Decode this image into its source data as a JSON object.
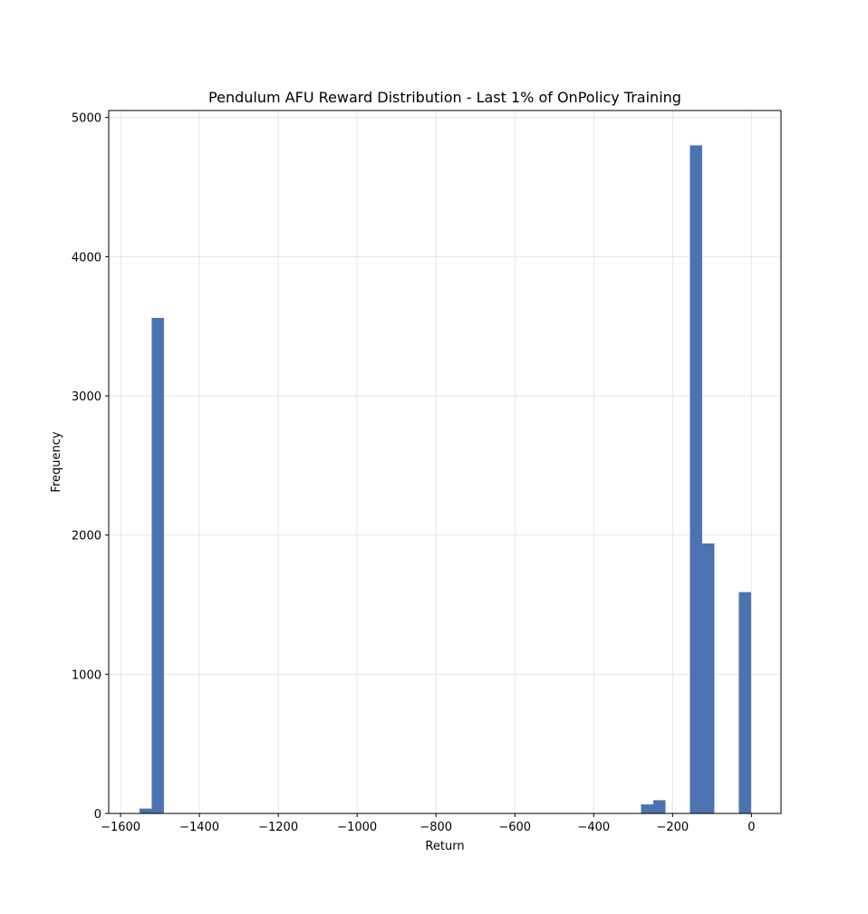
{
  "chart_data": {
    "type": "bar",
    "title": "Pendulum AFU Reward Distribution - Last 1% of OnPolicy Training",
    "xlabel": "Return",
    "ylabel": "Frequency",
    "xlim": [
      -1630,
      75
    ],
    "ylim": [
      0,
      5050
    ],
    "xticks": [
      -1600,
      -1400,
      -1200,
      -1000,
      -800,
      -600,
      -400,
      -200,
      0
    ],
    "xtick_labels": [
      "−1600",
      "−1400",
      "−1200",
      "−1000",
      "−800",
      "−600",
      "−400",
      "−200",
      "0"
    ],
    "yticks": [
      0,
      1000,
      2000,
      3000,
      4000,
      5000
    ],
    "ytick_labels": [
      "0",
      "1000",
      "2000",
      "3000",
      "4000",
      "5000"
    ],
    "grid": true,
    "bar_color": "#4c72b0",
    "bins": [
      {
        "x0": -1552,
        "x1": -1521,
        "count": 35
      },
      {
        "x0": -1521,
        "x1": -1490,
        "count": 3560
      },
      {
        "x0": -280,
        "x1": -249,
        "count": 65
      },
      {
        "x0": -249,
        "x1": -218,
        "count": 95
      },
      {
        "x0": -156,
        "x1": -125,
        "count": 4800
      },
      {
        "x0": -125,
        "x1": -94,
        "count": 1940
      },
      {
        "x0": -32,
        "x1": -1,
        "count": 1590
      }
    ]
  }
}
